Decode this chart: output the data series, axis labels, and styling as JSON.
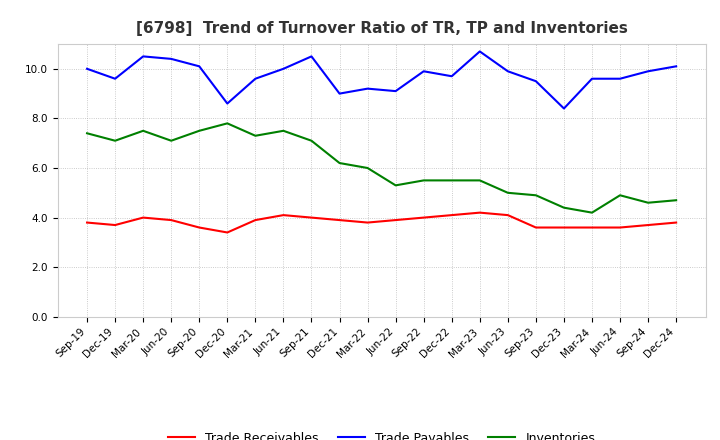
{
  "title": "[6798]  Trend of Turnover Ratio of TR, TP and Inventories",
  "x_labels": [
    "Sep-19",
    "Dec-19",
    "Mar-20",
    "Jun-20",
    "Sep-20",
    "Dec-20",
    "Mar-21",
    "Jun-21",
    "Sep-21",
    "Dec-21",
    "Mar-22",
    "Jun-22",
    "Sep-22",
    "Dec-22",
    "Mar-23",
    "Jun-23",
    "Sep-23",
    "Dec-23",
    "Mar-24",
    "Jun-24",
    "Sep-24",
    "Dec-24"
  ],
  "trade_receivables": [
    3.8,
    3.7,
    4.0,
    3.9,
    3.6,
    3.4,
    3.9,
    4.1,
    4.0,
    3.9,
    3.8,
    3.9,
    4.0,
    4.1,
    4.2,
    4.1,
    3.6,
    3.6,
    3.6,
    3.6,
    3.7,
    3.8
  ],
  "trade_payables": [
    10.0,
    9.6,
    10.5,
    10.4,
    10.1,
    8.6,
    9.6,
    10.0,
    10.5,
    9.0,
    9.2,
    9.1,
    9.9,
    9.7,
    10.7,
    9.9,
    9.5,
    8.4,
    9.6,
    9.6,
    9.9,
    10.1
  ],
  "inventories": [
    7.4,
    7.1,
    7.5,
    7.1,
    7.5,
    7.8,
    7.3,
    7.5,
    7.1,
    6.2,
    6.0,
    5.3,
    5.5,
    5.5,
    5.5,
    5.0,
    4.9,
    4.4,
    4.2,
    4.9,
    4.6,
    4.7
  ],
  "ylim": [
    0.0,
    11.0
  ],
  "yticks": [
    0.0,
    2.0,
    4.0,
    6.0,
    8.0,
    10.0
  ],
  "tr_color": "#ff0000",
  "tp_color": "#0000ff",
  "inv_color": "#008000",
  "background_color": "#ffffff",
  "grid_color": "#aaaaaa",
  "title_color": "#333333",
  "legend_labels": [
    "Trade Receivables",
    "Trade Payables",
    "Inventories"
  ],
  "title_fontsize": 11,
  "tick_fontsize": 7.5,
  "figsize": [
    7.2,
    4.4
  ],
  "dpi": 100
}
